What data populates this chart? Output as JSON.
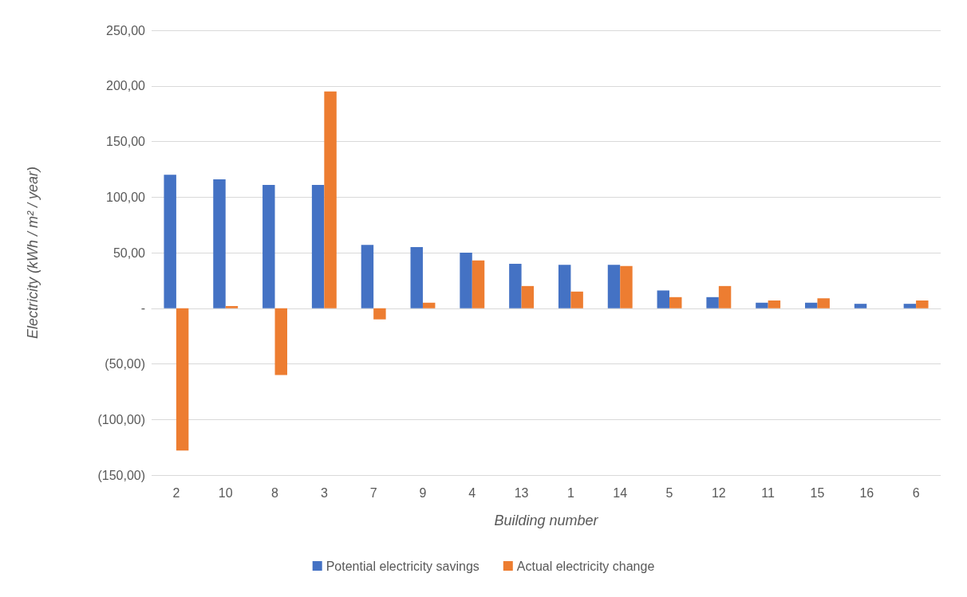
{
  "chart_data": {
    "type": "bar",
    "xlabel": "Building number",
    "ylabel": "Electricity (kWh / m² / year)",
    "categories": [
      "2",
      "10",
      "8",
      "3",
      "7",
      "9",
      "4",
      "13",
      "1",
      "14",
      "5",
      "12",
      "11",
      "15",
      "16",
      "6"
    ],
    "series": [
      {
        "name": "Potential electricity savings",
        "color": "#4472c4",
        "values": [
          120,
          116,
          111,
          111,
          57,
          55,
          50,
          40,
          39,
          39,
          16,
          10,
          5,
          5,
          4,
          4
        ]
      },
      {
        "name": "Actual electricity change",
        "color": "#ed7d31",
        "values": [
          -128,
          2,
          -60,
          195,
          -10,
          5,
          43,
          20,
          15,
          38,
          10,
          20,
          7,
          9,
          0,
          7
        ]
      }
    ],
    "ylim": [
      -150,
      250
    ],
    "yticks": [
      {
        "value": -150,
        "label": "(150,00)"
      },
      {
        "value": -100,
        "label": "(100,00)"
      },
      {
        "value": -50,
        "label": "(50,00)"
      },
      {
        "value": 0,
        "label": "-"
      },
      {
        "value": 50,
        "label": "50,00"
      },
      {
        "value": 100,
        "label": "100,00"
      },
      {
        "value": 150,
        "label": "150,00"
      },
      {
        "value": 200,
        "label": "200,00"
      },
      {
        "value": 250,
        "label": "250,00"
      }
    ],
    "grid": "y",
    "legend": "bottom"
  }
}
